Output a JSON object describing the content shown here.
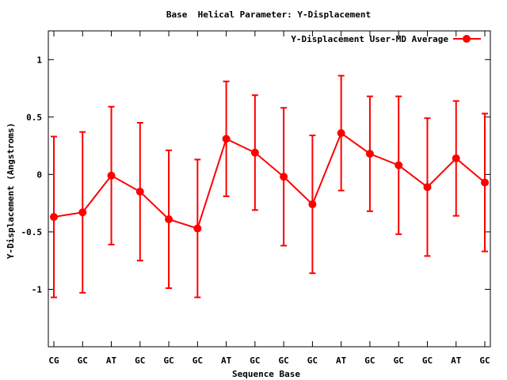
{
  "chart_data": {
    "type": "line",
    "title": "Base  Helical Parameter: Y-Displacement",
    "xlabel": "Sequence Base",
    "ylabel": "Y-Displacement (Angstroms)",
    "categories": [
      "CG",
      "GC",
      "AT",
      "GC",
      "GC",
      "GC",
      "AT",
      "GC",
      "GC",
      "GC",
      "AT",
      "GC",
      "GC",
      "GC",
      "AT",
      "GC"
    ],
    "ylim": [
      -1.5,
      1.25
    ],
    "yticks": [
      -1,
      -0.5,
      0,
      0.5,
      1
    ],
    "ytick_labels": [
      "-1",
      "-0.5",
      "0",
      "0.5",
      "1"
    ],
    "grid": false,
    "legend_position": "top-right",
    "series": [
      {
        "name": "Y-Displacement User-MD Average",
        "color": "#ff0000",
        "values": [
          -0.37,
          -0.33,
          -0.01,
          -0.15,
          -0.39,
          -0.47,
          0.31,
          0.19,
          -0.02,
          -0.26,
          0.36,
          0.18,
          0.08,
          -0.11,
          0.14,
          -0.07
        ],
        "error_low": [
          -1.07,
          -1.03,
          -0.61,
          -0.75,
          -0.99,
          -1.07,
          -0.19,
          -0.31,
          -0.62,
          -0.86,
          -0.14,
          -0.32,
          -0.52,
          -0.71,
          -0.36,
          -0.67
        ],
        "error_high": [
          0.33,
          0.37,
          0.59,
          0.45,
          0.21,
          0.13,
          0.81,
          0.69,
          0.58,
          0.34,
          0.86,
          0.68,
          0.68,
          0.49,
          0.64,
          0.53
        ]
      }
    ]
  }
}
